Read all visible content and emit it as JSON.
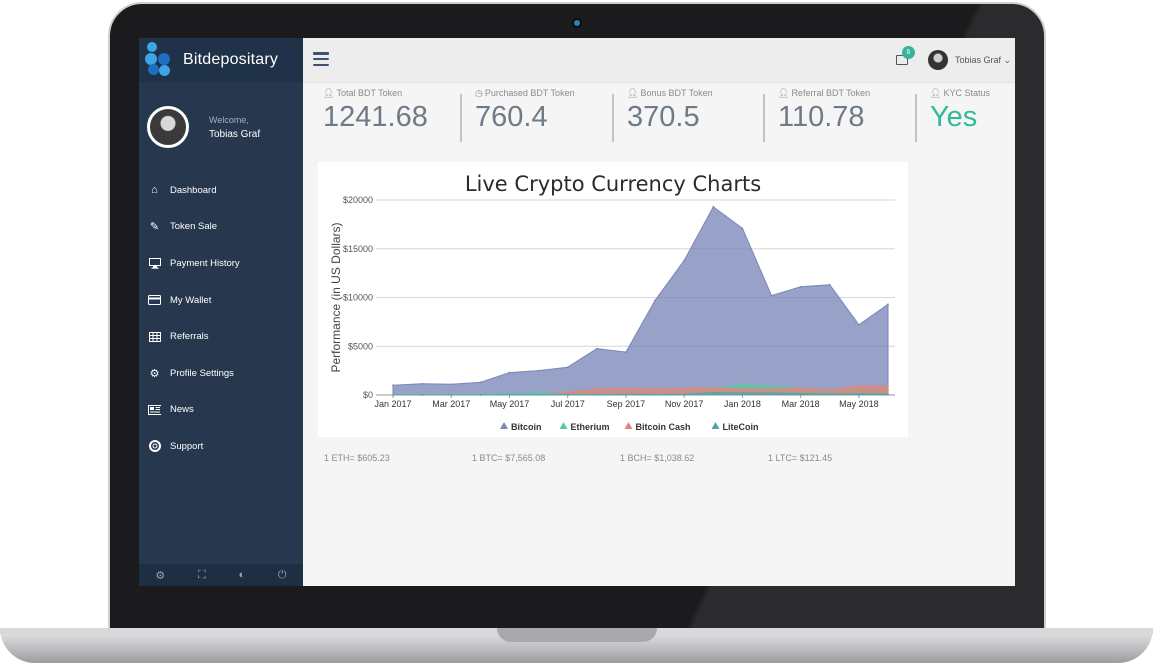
{
  "app": {
    "brand": "Bitdepositary"
  },
  "sidebar": {
    "welcome": "Welcome,",
    "user_name": "Tobias Graf",
    "items": [
      {
        "label": "Dashboard",
        "icon": "home-icon"
      },
      {
        "label": "Token Sale",
        "icon": "edit-icon"
      },
      {
        "label": "Payment History",
        "icon": "monitor-icon"
      },
      {
        "label": "My Wallet",
        "icon": "credit-card-icon"
      },
      {
        "label": "Referrals",
        "icon": "table-icon"
      },
      {
        "label": "Profile Settings",
        "icon": "gear-icon"
      },
      {
        "label": "News",
        "icon": "newspaper-icon"
      },
      {
        "label": "Support",
        "icon": "lifebuoy-icon"
      }
    ],
    "footer_icons": [
      "gear-icon",
      "fullscreen-icon",
      "eye-slash-icon",
      "power-icon"
    ]
  },
  "topbar": {
    "notification_count": "6",
    "user_name": "Tobias Graf"
  },
  "stats": [
    {
      "label": "Total BDT Token",
      "value": "1241.68",
      "icon": "user-icon"
    },
    {
      "label": "Purchased BDT Token",
      "value": "760.4",
      "icon": "clock-icon"
    },
    {
      "label": "Bonus BDT Token",
      "value": "370.5",
      "icon": "user-icon"
    },
    {
      "label": "Referral BDT Token",
      "value": "110.78",
      "icon": "user-icon"
    },
    {
      "label": "KYC Status",
      "value": "Yes",
      "icon": "user-icon"
    }
  ],
  "chart_data": {
    "type": "area",
    "title": "Live Crypto Currency Charts",
    "xlabel": "",
    "ylabel": "Performance (in US Dollars)",
    "ylim": [
      0,
      20000
    ],
    "yticks": [
      "$0",
      "$5000",
      "$10000",
      "$15000",
      "$20000"
    ],
    "x_tick_labels": [
      "Jan 2017",
      "Mar 2017",
      "May 2017",
      "Jul 2017",
      "Sep 2017",
      "Nov 2017",
      "Jan 2018",
      "Mar 2018",
      "May 2018"
    ],
    "x": [
      "Jan 2017",
      "Feb 2017",
      "Mar 2017",
      "Apr 2017",
      "May 2017",
      "Jun 2017",
      "Jul 2017",
      "Aug 2017",
      "Sep 2017",
      "Oct 2017",
      "Nov 2017",
      "Dec 2017",
      "Jan 2018",
      "Feb 2018",
      "Mar 2018",
      "Apr 2018",
      "May 2018",
      "Jun 2018"
    ],
    "legend_position": "bottom",
    "series": [
      {
        "name": "Bitcoin",
        "color": "#7b86b8",
        "values": [
          1000,
          1150,
          1100,
          1300,
          2300,
          2500,
          2850,
          4750,
          4400,
          9700,
          13800,
          19300,
          17100,
          10200,
          11100,
          11300,
          7200,
          9300
        ]
      },
      {
        "name": "Etherium",
        "color": "#5fc5a1",
        "values": [
          10,
          15,
          30,
          60,
          100,
          200,
          280,
          300,
          290,
          300,
          400,
          600,
          1100,
          900,
          700,
          400,
          600,
          500
        ]
      },
      {
        "name": "Bitcoin Cash",
        "color": "#e0857c",
        "values": [
          0,
          0,
          0,
          0,
          0,
          0,
          300,
          600,
          700,
          600,
          700,
          700,
          600,
          600,
          700,
          500,
          900,
          900
        ]
      },
      {
        "name": "LiteCoin",
        "color": "#5aa0a8",
        "values": [
          4,
          4,
          4,
          4,
          25,
          40,
          45,
          45,
          60,
          55,
          80,
          250,
          200,
          200,
          150,
          120,
          130,
          100
        ]
      }
    ]
  },
  "rates": [
    {
      "text": "1 ETH= $605.23"
    },
    {
      "text": "1 BTC= $7,565.08"
    },
    {
      "text": "1 BCH= $1,038.62"
    },
    {
      "text": "1 LTC= $121.45"
    }
  ]
}
